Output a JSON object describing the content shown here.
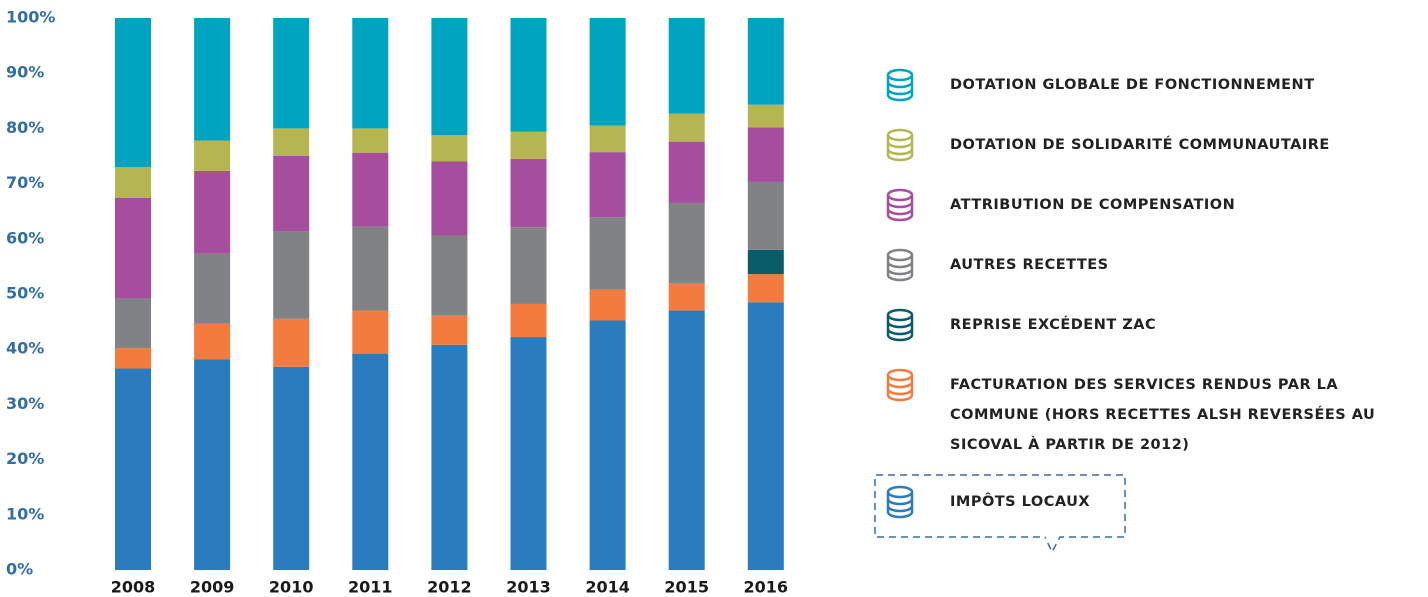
{
  "chart_data": {
    "type": "stacked_bar",
    "categories": [
      "2008",
      "2009",
      "2010",
      "2011",
      "2012",
      "2013",
      "2014",
      "2015",
      "2016"
    ],
    "ylim": [
      0,
      100
    ],
    "yticks": [
      {
        "value": 0,
        "label": "0%"
      },
      {
        "value": 10,
        "label": "10%"
      },
      {
        "value": 20,
        "label": "20%"
      },
      {
        "value": 30,
        "label": "30%"
      },
      {
        "value": 40,
        "label": "40%"
      },
      {
        "value": 50,
        "label": "50%"
      },
      {
        "value": 60,
        "label": "60%"
      },
      {
        "value": 70,
        "label": "70%"
      },
      {
        "value": 80,
        "label": "80%"
      },
      {
        "value": 90,
        "label": "90%"
      },
      {
        "value": 100,
        "label": "100%"
      }
    ],
    "series": [
      {
        "name": "IMPÔTS LOCAUX",
        "color": "#2b7bbf",
        "values": [
          36.5,
          38.2,
          36.8,
          39.2,
          40.8,
          42.2,
          45.2,
          47,
          48.5
        ]
      },
      {
        "name": "FACTURATION DES SERVICES RENDUS PAR LA COMMUNE (HORS RECETTES ALSH REVERSÉES AU SICOVAL À PARTIR DE 2012)",
        "color": "#f47b3e",
        "values": [
          3.7,
          6.4,
          8.7,
          7.8,
          5.4,
          6,
          5.6,
          5,
          5.1
        ]
      },
      {
        "name": "REPRISE EXCÉDENT ZAC",
        "color": "#0b5c6b",
        "values": [
          0,
          0,
          0,
          0,
          0,
          0,
          0,
          0,
          4.4
        ]
      },
      {
        "name": "AUTRES RECETTES",
        "color": "#808285",
        "values": [
          9,
          12.7,
          15.9,
          15.2,
          14.4,
          13.9,
          13.1,
          14.5,
          12.3
        ]
      },
      {
        "name": "ATTRIBUTION DE COMPENSATION",
        "color": "#a64d9d",
        "values": [
          18.2,
          15,
          13.6,
          13.4,
          13.4,
          12.4,
          11.8,
          11.1,
          9.9
        ]
      },
      {
        "name": "DOTATION DE SOLIDARITÉ COMMUNAUTAIRE",
        "color": "#b5b551",
        "values": [
          5.6,
          5.5,
          5,
          4.4,
          4.8,
          4.9,
          4.8,
          5.1,
          4.1
        ]
      },
      {
        "name": "DOTATION GLOBALE DE FONCTIONNEMENT",
        "color": "#00a3c0",
        "values": [
          27,
          22.2,
          20,
          20,
          21.2,
          20.6,
          19.5,
          17.3,
          15.7
        ]
      }
    ]
  }
}
